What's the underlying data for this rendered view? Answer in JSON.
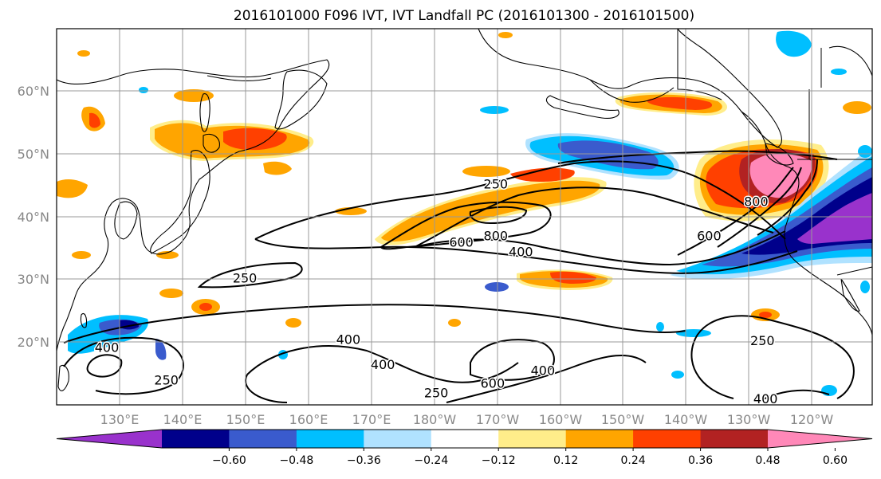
{
  "title": "2016101000 F096 IVT, IVT Landfall PC (2016101300 - 2016101500)",
  "map": {
    "lon_labels": [
      "130°E",
      "140°E",
      "150°E",
      "160°E",
      "170°E",
      "180°W",
      "170°W",
      "160°W",
      "150°W",
      "140°W",
      "130°W",
      "120°W"
    ],
    "lat_labels": [
      "20°N",
      "30°N",
      "40°N",
      "50°N",
      "60°N"
    ],
    "lon_range": [
      120,
      250
    ],
    "lat_range": [
      10,
      70
    ],
    "gridlines": true,
    "contour_labels": [
      {
        "text": "250",
        "lon": 190,
        "lat": 45.3
      },
      {
        "text": "600",
        "lon": 184.5,
        "lat": 36
      },
      {
        "text": "800",
        "lon": 190,
        "lat": 37
      },
      {
        "text": "400",
        "lon": 194,
        "lat": 34.5
      },
      {
        "text": "250",
        "lon": 150,
        "lat": 30.3
      },
      {
        "text": "800",
        "lon": 231.5,
        "lat": 42.5
      },
      {
        "text": "600",
        "lon": 224,
        "lat": 37
      },
      {
        "text": "400",
        "lon": 128,
        "lat": 19.2
      },
      {
        "text": "250",
        "lon": 137.5,
        "lat": 14
      },
      {
        "text": "400",
        "lon": 166.5,
        "lat": 20.5
      },
      {
        "text": "400",
        "lon": 172,
        "lat": 16.5
      },
      {
        "text": "250",
        "lon": 180.5,
        "lat": 12
      },
      {
        "text": "600",
        "lon": 189.5,
        "lat": 13.5
      },
      {
        "text": "400",
        "lon": 197.5,
        "lat": 15.5
      },
      {
        "text": "250",
        "lon": 232.5,
        "lat": 20.3
      },
      {
        "text": "400",
        "lon": 233,
        "lat": 11
      }
    ]
  },
  "colorbar": {
    "colors": [
      "#9932cc",
      "#00008b",
      "#3a5bcd",
      "#00bfff",
      "#b0e2ff",
      "#ffffff",
      "#ffed8a",
      "#ffa500",
      "#ff4000",
      "#b22222",
      "#ff88b8"
    ],
    "tick_labels": [
      "−0.60",
      "−0.48",
      "−0.36",
      "−0.24",
      "−0.12",
      "0.12",
      "0.24",
      "0.36",
      "0.48",
      "0.60"
    ]
  }
}
